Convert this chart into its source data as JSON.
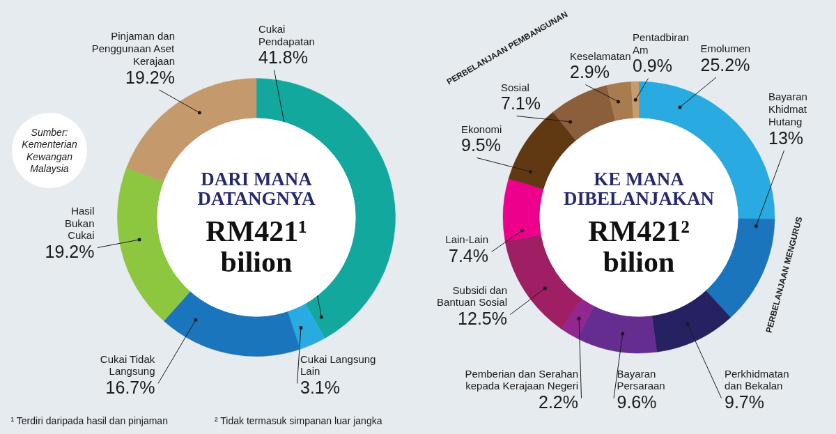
{
  "chart_data": [
    {
      "type": "donut",
      "title": "DARI MANA DATANGNYA",
      "subtitle": "RM421¹ bilion",
      "categories": [
        "Cukai Pendapatan",
        "Cukai Langsung Lain",
        "Cukai Tidak Langsung",
        "Hasil Bukan Cukai",
        "Pinjaman dan Penggunaan Aset Kerajaan"
      ],
      "values": [
        41.8,
        3.1,
        16.7,
        19.2,
        19.2
      ],
      "value_labels": [
        "41.8%",
        "3.1%",
        "16.7%",
        "19.2%",
        "19.2%"
      ],
      "colors": [
        "#13a89e",
        "#29abe2",
        "#1b75bc",
        "#8dc63f",
        "#c49a6c"
      ],
      "annotations": [
        "Sumber: Kementerian Kewangan Malaysia",
        "¹ Terdiri daripada hasil dan pinjaman",
        "² Tidak termasuk simpanan luar jangka"
      ]
    },
    {
      "type": "donut",
      "title": "KE MANA DIBELANJAKAN",
      "subtitle": "RM421² bilion",
      "categories": [
        "Emolumen",
        "Bayaran Khidmat Hutang",
        "Perkhidmatan dan Bekalan",
        "Bayaran Persaraan",
        "Pemberian dan Serahan kepada Kerajaan Negeri",
        "Subsidi dan Bantuan Sosial",
        "Lain-Lain",
        "Ekonomi",
        "Sosial",
        "Keselamatan",
        "Pentadbiran Am"
      ],
      "values": [
        25.2,
        13,
        9.7,
        9.6,
        2.2,
        12.5,
        7.4,
        9.5,
        7.1,
        2.9,
        0.9
      ],
      "value_labels": [
        "25.2%",
        "13%",
        "9.7%",
        "9.6%",
        "2.2%",
        "12.5%",
        "7.4%",
        "9.5%",
        "7.1%",
        "2.9%",
        "0.9%"
      ],
      "colors": [
        "#29abe2",
        "#1b75bc",
        "#262262",
        "#662d91",
        "#92278f",
        "#9e1f63",
        "#ec008c",
        "#603913",
        "#8b5e3c",
        "#a97c50",
        "#c69c6d"
      ],
      "annotations": [
        "PERBELANJAAN PEMBANGUNAN",
        "PERBELANJAAN MENGURUS"
      ]
    }
  ]
}
